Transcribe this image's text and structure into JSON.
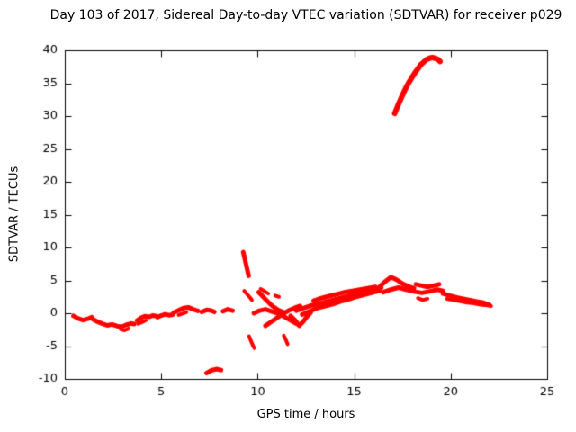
{
  "chart_data": {
    "type": "scatter",
    "title": "Day 103 of 2017, Sidereal Day-to-day VTEC variation (SDTVAR) for receiver p029",
    "xlabel": "GPS time / hours",
    "ylabel": "SDTVAR / TECUs",
    "xlim": [
      0,
      25
    ],
    "ylim": [
      -10,
      40
    ],
    "xticks": [
      0,
      5,
      10,
      15,
      20,
      25
    ],
    "yticks": [
      -10,
      -5,
      0,
      5,
      10,
      15,
      20,
      25,
      30,
      35,
      40
    ],
    "grid": false,
    "legend": "none",
    "point_color": "#ff0000",
    "axis_color": "#000000",
    "tracks": [
      {
        "w": 5,
        "pts": [
          [
            0.45,
            -0.4
          ],
          [
            0.7,
            -0.8
          ],
          [
            0.95,
            -1.05
          ],
          [
            1.2,
            -0.85
          ],
          [
            1.4,
            -0.6
          ]
        ]
      },
      {
        "w": 5,
        "pts": [
          [
            1.45,
            -0.9
          ],
          [
            1.7,
            -1.3
          ],
          [
            1.95,
            -1.6
          ],
          [
            2.2,
            -1.85
          ],
          [
            2.45,
            -1.7
          ],
          [
            2.7,
            -1.95
          ],
          [
            2.95,
            -2.05
          ],
          [
            3.2,
            -1.75
          ],
          [
            3.45,
            -1.55
          ],
          [
            3.6,
            -1.65
          ]
        ]
      },
      {
        "w": 4,
        "pts": [
          [
            2.9,
            -2.45
          ],
          [
            3.1,
            -2.6
          ],
          [
            3.3,
            -2.35
          ]
        ]
      },
      {
        "w": 5,
        "pts": [
          [
            3.75,
            -1.1
          ],
          [
            3.95,
            -0.7
          ],
          [
            4.15,
            -0.45
          ],
          [
            4.35,
            -0.55
          ],
          [
            4.55,
            -0.35
          ],
          [
            4.75,
            -0.45
          ]
        ]
      },
      {
        "w": 4,
        "pts": [
          [
            3.8,
            -1.6
          ],
          [
            4.0,
            -1.35
          ],
          [
            4.2,
            -1.1
          ]
        ]
      },
      {
        "w": 5,
        "pts": [
          [
            4.8,
            -0.6
          ],
          [
            5.0,
            -0.35
          ],
          [
            5.2,
            -0.15
          ],
          [
            5.4,
            -0.3
          ],
          [
            5.6,
            -0.2
          ]
        ]
      },
      {
        "w": 5,
        "pts": [
          [
            5.65,
            0.1
          ],
          [
            5.9,
            0.45
          ],
          [
            6.15,
            0.8
          ],
          [
            6.4,
            0.9
          ],
          [
            6.65,
            0.6
          ],
          [
            6.9,
            0.35
          ]
        ]
      },
      {
        "w": 4,
        "pts": [
          [
            5.9,
            -0.25
          ],
          [
            6.1,
            -0.05
          ],
          [
            6.3,
            0.15
          ]
        ]
      },
      {
        "w": 5,
        "pts": [
          [
            7.1,
            0.2
          ],
          [
            7.35,
            0.5
          ],
          [
            7.6,
            0.4
          ],
          [
            7.75,
            0.2
          ]
        ]
      },
      {
        "w": 5,
        "pts": [
          [
            7.35,
            -9.1
          ],
          [
            7.6,
            -8.7
          ],
          [
            7.85,
            -8.5
          ],
          [
            8.1,
            -8.65
          ]
        ]
      },
      {
        "w": 5,
        "pts": [
          [
            8.2,
            0.3
          ],
          [
            8.45,
            0.6
          ],
          [
            8.7,
            0.4
          ]
        ]
      },
      {
        "w": 5,
        "pts": [
          [
            9.25,
            9.3
          ],
          [
            9.32,
            8.4
          ],
          [
            9.39,
            7.5
          ],
          [
            9.46,
            6.6
          ],
          [
            9.53,
            5.7
          ]
        ]
      },
      {
        "w": 4,
        "pts": [
          [
            9.3,
            3.4
          ],
          [
            9.45,
            2.9
          ],
          [
            9.6,
            2.4
          ],
          [
            9.7,
            2.0
          ]
        ]
      },
      {
        "w": 4,
        "pts": [
          [
            9.55,
            -3.5
          ],
          [
            9.65,
            -4.2
          ],
          [
            9.75,
            -4.9
          ],
          [
            9.82,
            -5.3
          ]
        ]
      },
      {
        "w": 5,
        "pts": [
          [
            9.8,
            0.0
          ],
          [
            10.1,
            0.4
          ],
          [
            10.4,
            0.6
          ],
          [
            10.7,
            0.3
          ],
          [
            11.0,
            0.0
          ],
          [
            11.3,
            -0.4
          ],
          [
            11.6,
            -0.9
          ],
          [
            11.9,
            -1.4
          ],
          [
            12.1,
            -1.7
          ]
        ]
      },
      {
        "w": 5,
        "pts": [
          [
            10.05,
            3.2
          ],
          [
            10.25,
            2.6
          ],
          [
            10.45,
            2.0
          ],
          [
            10.65,
            1.4
          ],
          [
            10.85,
            0.9
          ],
          [
            11.05,
            0.5
          ],
          [
            11.3,
            0.2
          ]
        ]
      },
      {
        "w": 4,
        "pts": [
          [
            10.15,
            3.7
          ],
          [
            10.35,
            3.35
          ],
          [
            10.55,
            3.0
          ]
        ]
      },
      {
        "w": 4,
        "pts": [
          [
            10.9,
            2.7
          ],
          [
            11.1,
            2.5
          ]
        ]
      },
      {
        "w": 5,
        "pts": [
          [
            10.4,
            -1.9
          ],
          [
            10.7,
            -1.3
          ],
          [
            11.0,
            -0.7
          ],
          [
            11.3,
            -0.1
          ],
          [
            11.6,
            0.4
          ],
          [
            11.9,
            0.8
          ],
          [
            12.2,
            1.1
          ]
        ]
      },
      {
        "w": 4,
        "pts": [
          [
            11.35,
            -3.4
          ],
          [
            11.45,
            -4.0
          ],
          [
            11.55,
            -4.7
          ]
        ]
      },
      {
        "w": 5,
        "pts": [
          [
            11.7,
            -0.4
          ],
          [
            11.95,
            -1.1
          ],
          [
            12.15,
            -1.9
          ],
          [
            12.35,
            -1.3
          ],
          [
            12.55,
            -0.5
          ],
          [
            12.75,
            0.1
          ]
        ]
      },
      {
        "w": 5,
        "pts": [
          [
            12.0,
            0.4
          ],
          [
            12.4,
            0.8
          ],
          [
            12.8,
            1.2
          ],
          [
            13.2,
            1.5
          ],
          [
            13.6,
            1.8
          ],
          [
            14.0,
            2.1
          ],
          [
            14.4,
            2.4
          ],
          [
            14.8,
            2.7
          ],
          [
            15.2,
            3.0
          ],
          [
            15.6,
            3.3
          ],
          [
            16.0,
            3.6
          ],
          [
            16.4,
            3.9
          ]
        ]
      },
      {
        "w": 5,
        "pts": [
          [
            12.3,
            -0.2
          ],
          [
            12.7,
            0.3
          ],
          [
            13.1,
            0.8
          ],
          [
            13.5,
            1.1
          ],
          [
            13.9,
            1.4
          ],
          [
            14.3,
            1.8
          ],
          [
            14.7,
            2.1
          ],
          [
            15.1,
            2.5
          ],
          [
            15.5,
            2.8
          ],
          [
            15.9,
            3.1
          ],
          [
            16.3,
            3.4
          ]
        ]
      },
      {
        "w": 5,
        "pts": [
          [
            12.9,
            1.9
          ],
          [
            13.3,
            2.3
          ],
          [
            13.7,
            2.6
          ],
          [
            14.1,
            2.9
          ],
          [
            14.5,
            3.2
          ],
          [
            14.9,
            3.4
          ],
          [
            15.3,
            3.6
          ],
          [
            15.7,
            3.8
          ],
          [
            16.1,
            4.0
          ]
        ]
      },
      {
        "w": 5,
        "pts": [
          [
            16.3,
            4.0
          ],
          [
            16.6,
            4.8
          ],
          [
            16.9,
            5.5
          ],
          [
            17.2,
            5.1
          ],
          [
            17.5,
            4.5
          ],
          [
            17.8,
            4.1
          ],
          [
            18.1,
            3.8
          ]
        ]
      },
      {
        "w": 5,
        "pts": [
          [
            16.5,
            3.2
          ],
          [
            16.9,
            3.6
          ],
          [
            17.3,
            3.9
          ],
          [
            17.7,
            3.6
          ],
          [
            18.1,
            3.3
          ],
          [
            18.5,
            3.1
          ],
          [
            18.9,
            3.3
          ],
          [
            19.3,
            3.6
          ],
          [
            19.6,
            3.4
          ]
        ]
      },
      {
        "w": 5,
        "pts": [
          [
            18.2,
            4.4
          ],
          [
            18.5,
            4.2
          ],
          [
            18.8,
            4.0
          ],
          [
            19.1,
            4.2
          ],
          [
            19.4,
            4.4
          ]
        ]
      },
      {
        "w": 4,
        "pts": [
          [
            18.3,
            2.3
          ],
          [
            18.55,
            2.0
          ],
          [
            18.8,
            2.2
          ]
        ]
      },
      {
        "w": 5,
        "pts": [
          [
            19.6,
            3.0
          ],
          [
            19.95,
            2.7
          ],
          [
            20.3,
            2.4
          ],
          [
            20.65,
            2.2
          ],
          [
            21.0,
            2.0
          ],
          [
            21.35,
            1.8
          ],
          [
            21.7,
            1.6
          ],
          [
            22.0,
            1.3
          ]
        ]
      },
      {
        "w": 4,
        "pts": [
          [
            19.8,
            2.2
          ],
          [
            20.15,
            2.0
          ],
          [
            20.5,
            1.8
          ],
          [
            20.85,
            1.6
          ],
          [
            21.2,
            1.5
          ],
          [
            21.55,
            1.3
          ],
          [
            21.9,
            1.2
          ],
          [
            22.1,
            1.1
          ]
        ]
      },
      {
        "w": 6,
        "pts": [
          [
            17.1,
            30.4
          ],
          [
            17.25,
            31.5
          ],
          [
            17.4,
            32.5
          ],
          [
            17.55,
            33.5
          ],
          [
            17.7,
            34.4
          ],
          [
            17.85,
            35.2
          ],
          [
            18.0,
            35.9
          ],
          [
            18.15,
            36.6
          ],
          [
            18.3,
            37.2
          ],
          [
            18.45,
            37.8
          ],
          [
            18.6,
            38.2
          ],
          [
            18.75,
            38.6
          ],
          [
            18.9,
            38.8
          ],
          [
            19.05,
            38.9
          ],
          [
            19.2,
            38.8
          ],
          [
            19.35,
            38.6
          ],
          [
            19.45,
            38.3
          ]
        ]
      }
    ]
  }
}
